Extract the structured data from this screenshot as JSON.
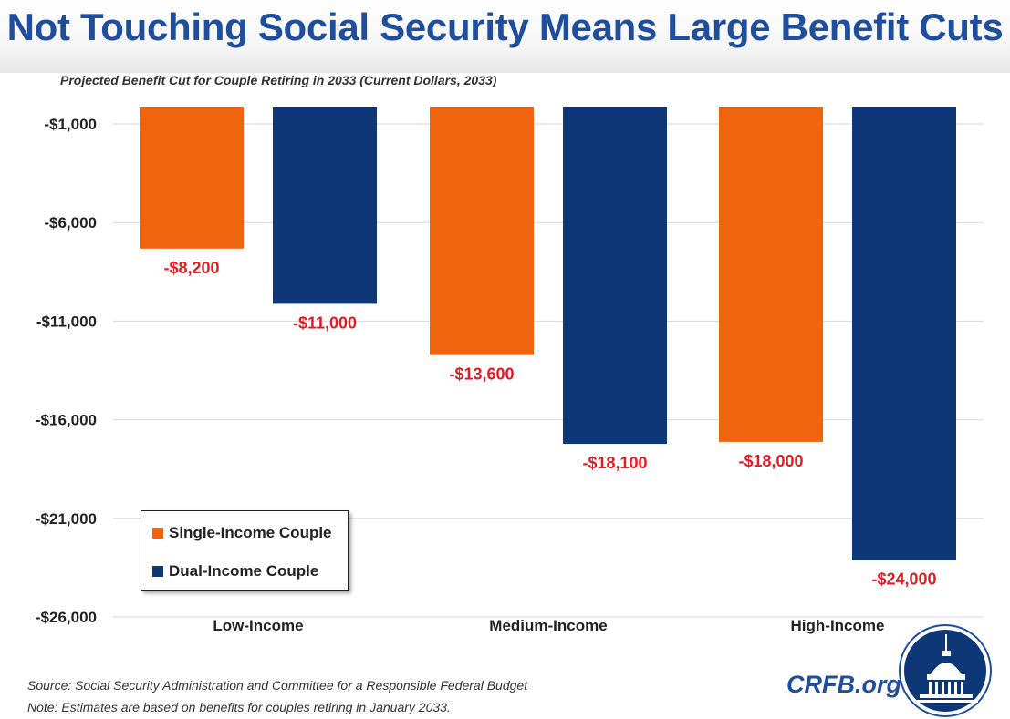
{
  "title": "Not Touching Social Security Means Large Benefit Cuts",
  "subtitle": "Projected Benefit Cut for Couple Retiring in 2033 (Current Dollars, 2033)",
  "colors": {
    "single": "#f0630f",
    "dual": "#0e3778",
    "label": "#e31c23",
    "title": "#1f4e9c",
    "grid": "#d9d9d9"
  },
  "legend": {
    "single": "Single-Income Couple",
    "dual": "Dual-Income Couple"
  },
  "source": {
    "line1": "Source: Social Security Administration and Committee for a Responsible Federal Budget",
    "line2": "Note: Estimates are based on benefits for couples retiring in January 2033."
  },
  "brand": "CRFB.org",
  "logo_icon": "capitol-dome-icon",
  "chart_data": {
    "type": "bar",
    "categories": [
      "Low-Income",
      "Medium-Income",
      "High-Income"
    ],
    "series": [
      {
        "name": "Single-Income Couple",
        "values": [
          -8200,
          -13600,
          -18000
        ],
        "labels": [
          "-$8,200",
          "-$13,600",
          "-$18,000"
        ]
      },
      {
        "name": "Dual-Income Couple",
        "values": [
          -11000,
          -18100,
          -24000
        ],
        "labels": [
          "-$11,000",
          "-$18,100",
          "-$24,000"
        ]
      }
    ],
    "yticks": [
      -1000,
      -6000,
      -11000,
      -16000,
      -21000,
      -26000
    ],
    "ytick_labels": [
      "-$1,000",
      "-$6,000",
      "-$11,000",
      "-$16,000",
      "-$21,000",
      "-$26,000"
    ],
    "ylim": [
      -26000,
      -1000
    ],
    "grid": true,
    "legend_position": "bottom-left"
  }
}
